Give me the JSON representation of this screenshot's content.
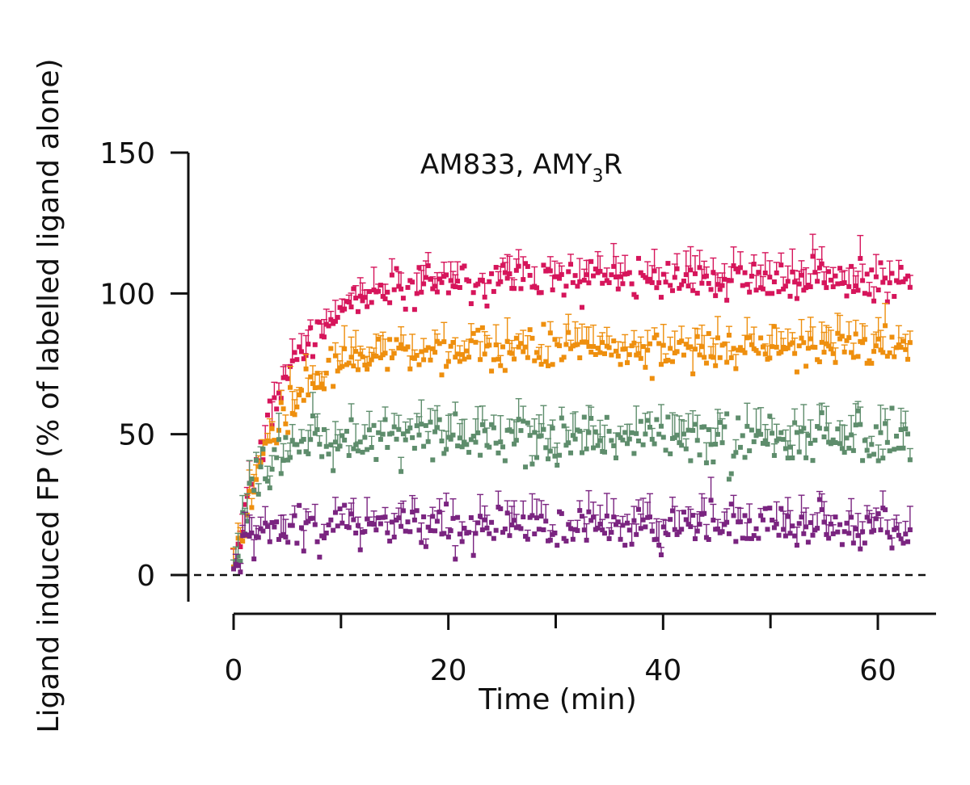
{
  "chart_data": {
    "type": "scatter",
    "title": "AM833, AMY",
    "title_subscript": "3",
    "title_suffix": "R",
    "xlabel": "Time (min)",
    "ylabel": "Ligand induced FP (% of labelled ligand alone)",
    "xlim": [
      0,
      63
    ],
    "ylim": [
      -10,
      150
    ],
    "xticks": [
      0,
      20,
      40,
      60
    ],
    "xticks_minor": [
      10,
      30,
      50
    ],
    "yticks": [
      0,
      50,
      100,
      150
    ],
    "reference_line": 0,
    "series": [
      {
        "name": "magenta",
        "color": "#D6155B",
        "plateau": 105,
        "rate": 0.22,
        "noise": 3.5,
        "err": 6,
        "seed": 11
      },
      {
        "name": "orange",
        "color": "#EE8F0E",
        "plateau": 80,
        "rate": 0.25,
        "noise": 3.5,
        "err": 6,
        "seed": 23
      },
      {
        "name": "green",
        "color": "#5E8D6C",
        "plateau": 48,
        "rate": 0.55,
        "noise": 4.5,
        "err": 7,
        "seed": 37
      },
      {
        "name": "purple",
        "color": "#7A2480",
        "plateau": 17,
        "rate": 1.2,
        "noise": 4.0,
        "err": 6,
        "seed": 53
      }
    ],
    "n_points": 300,
    "x_start": 0,
    "x_end": 63
  }
}
